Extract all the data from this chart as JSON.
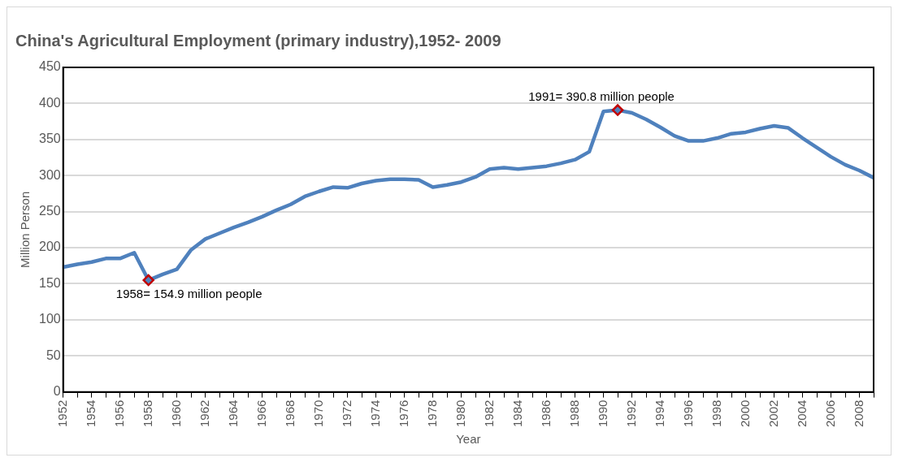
{
  "chart_data": {
    "type": "line",
    "title": "China's Agricultural Employment (primary industry),1952- 2009",
    "xlabel": "Year",
    "ylabel": "Million Person",
    "x": [
      1952,
      1953,
      1954,
      1955,
      1956,
      1957,
      1958,
      1959,
      1960,
      1961,
      1962,
      1963,
      1964,
      1965,
      1966,
      1967,
      1968,
      1969,
      1970,
      1971,
      1972,
      1973,
      1974,
      1975,
      1976,
      1977,
      1978,
      1979,
      1980,
      1981,
      1982,
      1983,
      1984,
      1985,
      1986,
      1987,
      1988,
      1989,
      1990,
      1991,
      1992,
      1993,
      1994,
      1995,
      1996,
      1997,
      1998,
      1999,
      2000,
      2001,
      2002,
      2003,
      2004,
      2005,
      2006,
      2007,
      2008,
      2009
    ],
    "series": [
      {
        "color": "#4f81bd",
        "marker": "none",
        "values": [
          173,
          177,
          180,
          185,
          185,
          193,
          154.9,
          163,
          170,
          197,
          212,
          220,
          228,
          235,
          243,
          252,
          260,
          271,
          278,
          284,
          283,
          289,
          293,
          295,
          295,
          294,
          284,
          287,
          291,
          298,
          309,
          311,
          309,
          311,
          313,
          317,
          322,
          333,
          389,
          390.8,
          387,
          378,
          367,
          355,
          348,
          348,
          352,
          358,
          360,
          365,
          369,
          366,
          352,
          339,
          326,
          315,
          307,
          297
        ]
      },
      {
        "type": "scatter",
        "color": "#c00000",
        "marker": "diamond",
        "x": [
          1958,
          1991
        ],
        "values": [
          154.9,
          390.8
        ]
      }
    ],
    "annotations": [
      {
        "text": "1958= 154.9 million people",
        "x": 1958,
        "y": 154.9
      },
      {
        "text": "1991= 390.8 million people",
        "x": 1991,
        "y": 390.8
      }
    ],
    "xlim": [
      1952,
      2009
    ],
    "xticks": [
      1952,
      {
        "value": 1953,
        "label": null
      },
      1954,
      {
        "value": 1955,
        "label": null
      },
      1956,
      {
        "value": 1957,
        "label": null
      },
      1958,
      {
        "value": 1959,
        "label": null
      },
      1960,
      {
        "value": 1961,
        "label": null
      },
      1962,
      {
        "value": 1963,
        "label": null
      },
      1964,
      {
        "value": 1965,
        "label": null
      },
      1966,
      {
        "value": 1967,
        "label": null
      },
      1968,
      {
        "value": 1969,
        "label": null
      },
      1970,
      {
        "value": 1971,
        "label": null
      },
      1972,
      {
        "value": 1973,
        "label": null
      },
      1974,
      {
        "value": 1975,
        "label": null
      },
      1976,
      {
        "value": 1977,
        "label": null
      },
      1978,
      {
        "value": 1979,
        "label": null
      },
      1980,
      {
        "value": 1981,
        "label": null
      },
      1982,
      {
        "value": 1983,
        "label": null
      },
      1984,
      {
        "value": 1985,
        "label": null
      },
      1986,
      {
        "value": 1987,
        "label": null
      },
      1988,
      {
        "value": 1989,
        "label": null
      },
      1990,
      {
        "value": 1991,
        "label": null
      },
      1992,
      {
        "value": 1993,
        "label": null
      },
      1994,
      {
        "value": 1995,
        "label": null
      },
      1996,
      {
        "value": 1997,
        "label": null
      },
      1998,
      {
        "value": 1999,
        "label": null
      },
      2000,
      {
        "value": 2001,
        "label": null
      },
      2002,
      {
        "value": 2003,
        "label": null
      },
      2004,
      {
        "value": 2005,
        "label": null
      },
      2006,
      {
        "value": 2007,
        "label": null
      },
      2008,
      {
        "value": 2009,
        "label": null
      }
    ],
    "ylim": [
      0,
      450
    ],
    "yticks": [
      0,
      50,
      100,
      150,
      200,
      250,
      300,
      350,
      400,
      450
    ],
    "grid": "y",
    "legend": false
  }
}
